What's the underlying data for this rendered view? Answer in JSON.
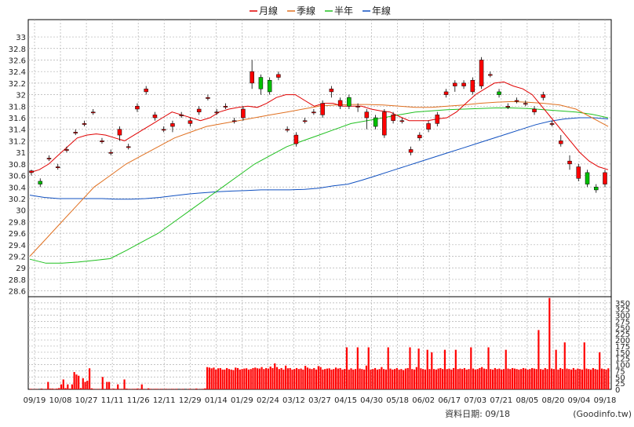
{
  "legend": [
    {
      "label": "月線",
      "color": "#e00000"
    },
    {
      "label": "季線",
      "color": "#e07020"
    },
    {
      "label": "半年",
      "color": "#20c020"
    },
    {
      "label": "年線",
      "color": "#1050c0"
    }
  ],
  "footer": {
    "data_date_label": "資料日期: 09/18",
    "source": "(Goodinfo.tw)"
  },
  "chart_data": [
    {
      "type": "candlestick",
      "ylim": [
        28.5,
        33.3
      ],
      "y_ticks": [
        "28.6",
        "28.8",
        "29",
        "29.2",
        "29.4",
        "29.6",
        "29.8",
        "30",
        "30.2",
        "30.4",
        "30.6",
        "30.8",
        "31",
        "31.2",
        "31.4",
        "31.6",
        "31.8",
        "32",
        "32.2",
        "32.4",
        "32.6",
        "32.8",
        "33"
      ],
      "x_tick_labels": [
        "09/19",
        "10/08",
        "10/27",
        "11/11",
        "11/26",
        "12/11",
        "12/29",
        "01/14",
        "01/29",
        "02/24",
        "03/12",
        "03/27",
        "04/15",
        "04/30",
        "05/18",
        "06/02",
        "06/17",
        "07/03",
        "07/21",
        "08/05",
        "08/20",
        "09/04",
        "09/18"
      ],
      "candles": [
        {
          "o": 30.65,
          "h": 30.7,
          "l": 30.6,
          "c": 30.68
        },
        {
          "o": 30.5,
          "h": 30.55,
          "l": 30.4,
          "c": 30.45
        },
        {
          "o": 30.9,
          "h": 30.95,
          "l": 30.85,
          "c": 30.9
        },
        {
          "o": 30.75,
          "h": 30.8,
          "l": 30.7,
          "c": 30.75
        },
        {
          "o": 31.05,
          "h": 31.1,
          "l": 31.0,
          "c": 31.05
        },
        {
          "o": 31.35,
          "h": 31.4,
          "l": 31.3,
          "c": 31.35
        },
        {
          "o": 31.5,
          "h": 31.55,
          "l": 31.45,
          "c": 31.5
        },
        {
          "o": 31.7,
          "h": 31.75,
          "l": 31.65,
          "c": 31.7
        },
        {
          "o": 31.2,
          "h": 31.25,
          "l": 31.15,
          "c": 31.2
        },
        {
          "o": 31.0,
          "h": 31.05,
          "l": 30.95,
          "c": 31.0
        },
        {
          "o": 31.3,
          "h": 31.45,
          "l": 31.2,
          "c": 31.4
        },
        {
          "o": 31.1,
          "h": 31.15,
          "l": 31.05,
          "c": 31.1
        },
        {
          "o": 31.75,
          "h": 31.85,
          "l": 31.7,
          "c": 31.8
        },
        {
          "o": 32.05,
          "h": 32.15,
          "l": 32.0,
          "c": 32.1
        },
        {
          "o": 31.6,
          "h": 31.7,
          "l": 31.55,
          "c": 31.65
        },
        {
          "o": 31.4,
          "h": 31.45,
          "l": 31.35,
          "c": 31.4
        },
        {
          "o": 31.45,
          "h": 31.55,
          "l": 31.35,
          "c": 31.5
        },
        {
          "o": 31.65,
          "h": 31.7,
          "l": 31.6,
          "c": 31.65
        },
        {
          "o": 31.5,
          "h": 31.6,
          "l": 31.45,
          "c": 31.55
        },
        {
          "o": 31.7,
          "h": 31.8,
          "l": 31.65,
          "c": 31.75
        },
        {
          "o": 31.95,
          "h": 32.0,
          "l": 31.9,
          "c": 31.95
        },
        {
          "o": 31.7,
          "h": 31.75,
          "l": 31.65,
          "c": 31.7
        },
        {
          "o": 31.8,
          "h": 31.85,
          "l": 31.75,
          "c": 31.8
        },
        {
          "o": 31.55,
          "h": 31.6,
          "l": 31.5,
          "c": 31.55
        },
        {
          "o": 31.6,
          "h": 31.8,
          "l": 31.55,
          "c": 31.75
        },
        {
          "o": 32.2,
          "h": 32.6,
          "l": 32.1,
          "c": 32.4
        },
        {
          "o": 32.3,
          "h": 32.35,
          "l": 32.0,
          "c": 32.1
        },
        {
          "o": 32.25,
          "h": 32.3,
          "l": 32.0,
          "c": 32.05
        },
        {
          "o": 32.3,
          "h": 32.4,
          "l": 32.25,
          "c": 32.35
        },
        {
          "o": 31.4,
          "h": 31.45,
          "l": 31.35,
          "c": 31.4
        },
        {
          "o": 31.15,
          "h": 31.35,
          "l": 31.1,
          "c": 31.3
        },
        {
          "o": 31.55,
          "h": 31.6,
          "l": 31.5,
          "c": 31.55
        },
        {
          "o": 31.7,
          "h": 31.75,
          "l": 31.65,
          "c": 31.7
        },
        {
          "o": 31.65,
          "h": 31.9,
          "l": 31.6,
          "c": 31.85
        },
        {
          "o": 32.05,
          "h": 32.15,
          "l": 31.95,
          "c": 32.1
        },
        {
          "o": 31.8,
          "h": 31.95,
          "l": 31.75,
          "c": 31.9
        },
        {
          "o": 31.95,
          "h": 32.0,
          "l": 31.75,
          "c": 31.8
        },
        {
          "o": 31.8,
          "h": 31.85,
          "l": 31.7,
          "c": 31.8
        },
        {
          "o": 31.6,
          "h": 31.75,
          "l": 31.4,
          "c": 31.7
        },
        {
          "o": 31.6,
          "h": 31.65,
          "l": 31.4,
          "c": 31.45
        },
        {
          "o": 31.3,
          "h": 31.75,
          "l": 31.25,
          "c": 31.7
        },
        {
          "o": 31.55,
          "h": 31.7,
          "l": 31.5,
          "c": 31.65
        },
        {
          "o": 31.55,
          "h": 31.6,
          "l": 31.5,
          "c": 31.55
        },
        {
          "o": 31.0,
          "h": 31.1,
          "l": 30.95,
          "c": 31.05
        },
        {
          "o": 31.25,
          "h": 31.35,
          "l": 31.2,
          "c": 31.3
        },
        {
          "o": 31.4,
          "h": 31.55,
          "l": 31.35,
          "c": 31.5
        },
        {
          "o": 31.5,
          "h": 31.7,
          "l": 31.45,
          "c": 31.65
        },
        {
          "o": 32.0,
          "h": 32.1,
          "l": 31.95,
          "c": 32.05
        },
        {
          "o": 32.15,
          "h": 32.25,
          "l": 32.05,
          "c": 32.2
        },
        {
          "o": 32.15,
          "h": 32.25,
          "l": 32.1,
          "c": 32.2
        },
        {
          "o": 32.05,
          "h": 32.3,
          "l": 32.0,
          "c": 32.25
        },
        {
          "o": 32.15,
          "h": 32.65,
          "l": 32.1,
          "c": 32.6
        },
        {
          "o": 32.35,
          "h": 32.4,
          "l": 32.3,
          "c": 32.35
        },
        {
          "o": 32.05,
          "h": 32.1,
          "l": 31.95,
          "c": 32.0
        },
        {
          "o": 31.8,
          "h": 31.85,
          "l": 31.75,
          "c": 31.8
        },
        {
          "o": 31.9,
          "h": 31.95,
          "l": 31.85,
          "c": 31.9
        },
        {
          "o": 31.85,
          "h": 31.9,
          "l": 31.8,
          "c": 31.85
        },
        {
          "o": 31.7,
          "h": 31.8,
          "l": 31.65,
          "c": 31.75
        },
        {
          "o": 31.95,
          "h": 32.05,
          "l": 31.9,
          "c": 32.0
        },
        {
          "o": 31.5,
          "h": 31.55,
          "l": 31.45,
          "c": 31.5
        },
        {
          "o": 31.15,
          "h": 31.3,
          "l": 31.1,
          "c": 31.2
        },
        {
          "o": 30.8,
          "h": 30.95,
          "l": 30.7,
          "c": 30.85
        },
        {
          "o": 30.55,
          "h": 30.8,
          "l": 30.5,
          "c": 30.75
        },
        {
          "o": 30.65,
          "h": 30.7,
          "l": 30.4,
          "c": 30.45
        },
        {
          "o": 30.4,
          "h": 30.45,
          "l": 30.3,
          "c": 30.35
        },
        {
          "o": 30.45,
          "h": 30.7,
          "l": 30.4,
          "c": 30.65
        }
      ],
      "ma_month": [
        30.65,
        30.7,
        30.8,
        30.95,
        31.1,
        31.25,
        31.3,
        31.32,
        31.3,
        31.25,
        31.2,
        31.3,
        31.4,
        31.5,
        31.6,
        31.7,
        31.65,
        31.6,
        31.55,
        31.6,
        31.7,
        31.75,
        31.78,
        31.8,
        31.78,
        31.85,
        31.95,
        32.0,
        32.0,
        31.9,
        31.8,
        31.85,
        31.85,
        31.8,
        31.8,
        31.8,
        31.75,
        31.72,
        31.7,
        31.62,
        31.55,
        31.55,
        31.55,
        31.58,
        31.6,
        31.7,
        31.85,
        32.0,
        32.1,
        32.2,
        32.22,
        32.15,
        32.1,
        32.0,
        31.8,
        31.6,
        31.4,
        31.2,
        31.0,
        30.85,
        30.75,
        30.7
      ],
      "ma_quarter": [
        29.2,
        29.5,
        29.8,
        30.1,
        30.4,
        30.6,
        30.8,
        30.95,
        31.1,
        31.25,
        31.35,
        31.45,
        31.5,
        31.55,
        31.6,
        31.65,
        31.7,
        31.75,
        31.8,
        31.82,
        31.83,
        31.83,
        31.82,
        31.8,
        31.78,
        31.78,
        31.8,
        31.82,
        31.85,
        31.87,
        31.88,
        31.87,
        31.85,
        31.82,
        31.75,
        31.6,
        31.45
      ],
      "ma_half": [
        29.15,
        29.08,
        29.08,
        29.1,
        29.13,
        29.16,
        29.3,
        29.45,
        29.6,
        29.8,
        30.0,
        30.2,
        30.4,
        30.6,
        30.8,
        30.95,
        31.1,
        31.2,
        31.3,
        31.4,
        31.5,
        31.55,
        31.6,
        31.65,
        31.7,
        31.72,
        31.74,
        31.75,
        31.76,
        31.77,
        31.77,
        31.76,
        31.74,
        31.72,
        31.7,
        31.66,
        31.6
      ],
      "ma_year": [
        30.26,
        30.22,
        30.2,
        30.2,
        30.2,
        30.2,
        30.19,
        30.19,
        30.2,
        30.22,
        30.25,
        30.28,
        30.3,
        30.32,
        30.33,
        30.34,
        30.35,
        30.35,
        30.35,
        30.36,
        30.38,
        30.42,
        30.45,
        30.52,
        30.6,
        30.68,
        30.76,
        30.84,
        30.92,
        31.0,
        31.08,
        31.16,
        31.24,
        31.32,
        31.4,
        31.48,
        31.54,
        31.58,
        31.6,
        31.6,
        31.58
      ]
    },
    {
      "type": "bar",
      "ylim": [
        0,
        375
      ],
      "y_ticks": [
        "0",
        "25",
        "50",
        "75",
        "100",
        "125",
        "150",
        "175",
        "200",
        "225",
        "250",
        "275",
        "300",
        "325",
        "350"
      ],
      "values": [
        2,
        1,
        1,
        1,
        0,
        3,
        1,
        2,
        30,
        3,
        3,
        2,
        3,
        5,
        20,
        40,
        5,
        20,
        3,
        20,
        70,
        60,
        55,
        5,
        45,
        30,
        35,
        85,
        4,
        2,
        1,
        2,
        1,
        50,
        2,
        30,
        30,
        2,
        3,
        2,
        20,
        2,
        2,
        40,
        3,
        2,
        1,
        2,
        2,
        3,
        2,
        20,
        2,
        1,
        4,
        2,
        1,
        2,
        2,
        1,
        2,
        1,
        2,
        1,
        1,
        2,
        1,
        2,
        0,
        1,
        2,
        0,
        1,
        2,
        1,
        1,
        3,
        1,
        1,
        2,
        4,
        90,
        88,
        85,
        88,
        80,
        85,
        86,
        80,
        80,
        86,
        82,
        80,
        78,
        88,
        86,
        80,
        82,
        84,
        85,
        80,
        82,
        86,
        88,
        85,
        84,
        90,
        82,
        86,
        84,
        92,
        86,
        105,
        90,
        82,
        86,
        80,
        96,
        85,
        86,
        80,
        82,
        86,
        82,
        84,
        80,
        95,
        88,
        84,
        82,
        86,
        80,
        94,
        90,
        80,
        82,
        84,
        85,
        80,
        82,
        88,
        84,
        86,
        80,
        82,
        170,
        80,
        85,
        80,
        82,
        170,
        84,
        82,
        80,
        96,
        170,
        80,
        82,
        86,
        80,
        82,
        90,
        82,
        80,
        170,
        84,
        80,
        82,
        86,
        80,
        82,
        78,
        84,
        86,
        170,
        82,
        80,
        90,
        165,
        85,
        82,
        80,
        160,
        82,
        150,
        82,
        80,
        84,
        86,
        82,
        160,
        82,
        84,
        80,
        86,
        160,
        82,
        84,
        82,
        86,
        80,
        82,
        170,
        84,
        80,
        82,
        86,
        90,
        84,
        82,
        170,
        82,
        80,
        86,
        82,
        84,
        80,
        82,
        160,
        84,
        82,
        86,
        84,
        82,
        80,
        82,
        86,
        84,
        80,
        82,
        86,
        84,
        82,
        240,
        82,
        80,
        86,
        82,
        370,
        84,
        82,
        160,
        80,
        86,
        82,
        190,
        84,
        82,
        80,
        86,
        80,
        84,
        82,
        80,
        190,
        84,
        82,
        80,
        86,
        82,
        80,
        150,
        84,
        82,
        80,
        85
      ]
    }
  ]
}
